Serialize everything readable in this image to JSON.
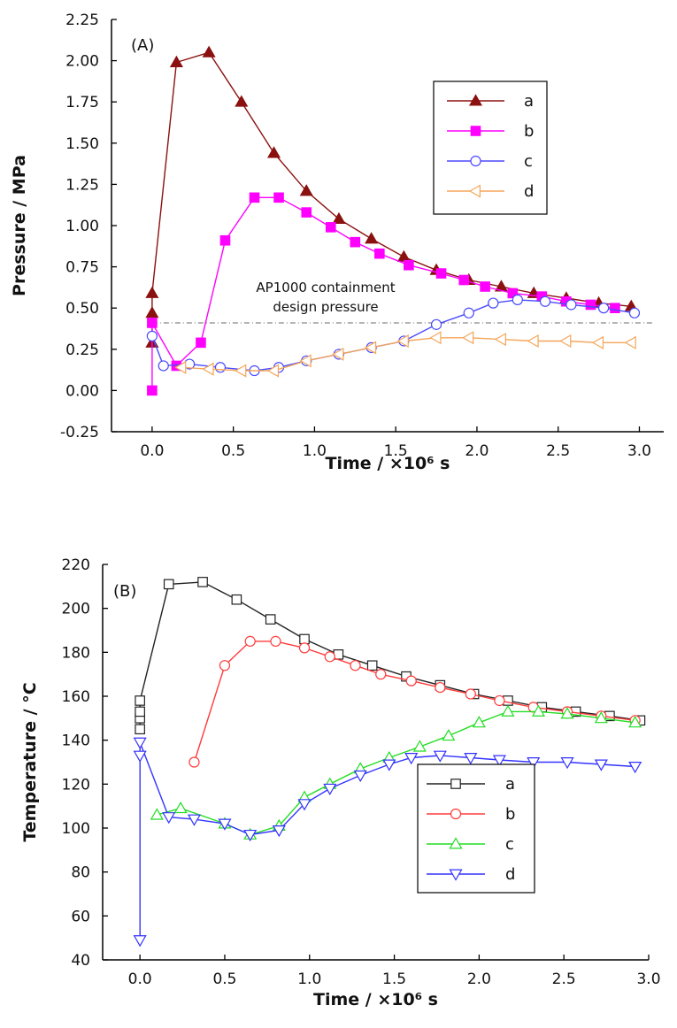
{
  "chart_data": [
    {
      "type": "line",
      "panel_label": "(A)",
      "xlabel": "Time / ×10⁶ s",
      "ylabel": "Pressure / MPa",
      "xlim": [
        -0.25,
        3.15
      ],
      "ylim": [
        -0.25,
        2.25
      ],
      "xticks": [
        0.0,
        0.5,
        1.0,
        1.5,
        2.0,
        2.5,
        3.0
      ],
      "xtick_labels": [
        "0.0",
        "0.5",
        "1.0",
        "1.5",
        "2.0",
        "2.5",
        "3.0"
      ],
      "yticks": [
        -0.25,
        0.0,
        0.25,
        0.5,
        0.75,
        1.0,
        1.25,
        1.5,
        1.75,
        2.0,
        2.25
      ],
      "ytick_labels": [
        "-0.25",
        "0.00",
        "0.25",
        "0.50",
        "0.75",
        "1.00",
        "1.25",
        "1.50",
        "1.75",
        "2.00",
        "2.25"
      ],
      "grid": false,
      "legend_position": "top-right",
      "annotation": {
        "lines": [
          "AP1000 containment",
          "design pressure"
        ],
        "reference_y": 0.41
      },
      "series": [
        {
          "name": "a",
          "color": "#8b1010",
          "marker": "triangle-up",
          "x": [
            0,
            0,
            0,
            0.15,
            0.35,
            0.55,
            0.75,
            0.95,
            1.15,
            1.35,
            1.55,
            1.75,
            1.95,
            2.15,
            2.35,
            2.55,
            2.75,
            2.95
          ],
          "y": [
            0.29,
            0.47,
            0.59,
            1.99,
            2.05,
            1.75,
            1.44,
            1.21,
            1.04,
            0.92,
            0.81,
            0.73,
            0.67,
            0.63,
            0.59,
            0.56,
            0.53,
            0.51
          ]
        },
        {
          "name": "b",
          "color": "#ff00ff",
          "marker": "square",
          "x": [
            0,
            0,
            0.15,
            0.3,
            0.45,
            0.63,
            0.78,
            0.95,
            1.1,
            1.25,
            1.4,
            1.58,
            1.78,
            1.92,
            2.05,
            2.22,
            2.4,
            2.55,
            2.7,
            2.85
          ],
          "y": [
            0.0,
            0.41,
            0.15,
            0.29,
            0.91,
            1.17,
            1.17,
            1.08,
            0.99,
            0.9,
            0.83,
            0.76,
            0.71,
            0.67,
            0.63,
            0.59,
            0.57,
            0.54,
            0.52,
            0.5
          ]
        },
        {
          "name": "c",
          "color": "#4a4aff",
          "marker": "circle",
          "x": [
            0,
            0.07,
            0.23,
            0.42,
            0.63,
            0.78,
            0.95,
            1.15,
            1.35,
            1.55,
            1.75,
            1.95,
            2.1,
            2.25,
            2.42,
            2.58,
            2.78,
            2.97
          ],
          "y": [
            0.33,
            0.15,
            0.16,
            0.14,
            0.12,
            0.14,
            0.18,
            0.22,
            0.26,
            0.3,
            0.4,
            0.47,
            0.53,
            0.55,
            0.54,
            0.52,
            0.5,
            0.47
          ]
        },
        {
          "name": "d",
          "color": "#f5a55a",
          "marker": "triangle-left",
          "x": [
            0.18,
            0.35,
            0.55,
            0.75,
            0.95,
            1.15,
            1.35,
            1.55,
            1.75,
            1.95,
            2.15,
            2.35,
            2.55,
            2.75,
            2.95
          ],
          "y": [
            0.14,
            0.13,
            0.12,
            0.12,
            0.18,
            0.22,
            0.26,
            0.3,
            0.32,
            0.32,
            0.31,
            0.3,
            0.3,
            0.29,
            0.29
          ]
        }
      ]
    },
    {
      "type": "line",
      "panel_label": "(B)",
      "xlabel": "Time / ×10⁶ s",
      "ylabel": "Temperature / °C",
      "xlim": [
        -0.22,
        3.0
      ],
      "ylim": [
        40,
        220
      ],
      "xticks": [
        0.0,
        0.5,
        1.0,
        1.5,
        2.0,
        2.5,
        3.0
      ],
      "xtick_labels": [
        "0.0",
        "0.5",
        "1.0",
        "1.5",
        "2.0",
        "2.5",
        "3.0"
      ],
      "yticks": [
        40,
        60,
        80,
        100,
        120,
        140,
        160,
        180,
        200,
        220
      ],
      "ytick_labels": [
        "40",
        "60",
        "80",
        "100",
        "120",
        "140",
        "160",
        "180",
        "200",
        "220"
      ],
      "grid": false,
      "legend_position": "bottom-right",
      "series": [
        {
          "name": "a",
          "color": "#222222",
          "marker": "square",
          "x": [
            0,
            0,
            0,
            0,
            0.17,
            0.37,
            0.57,
            0.77,
            0.97,
            1.17,
            1.37,
            1.57,
            1.77,
            1.97,
            2.17,
            2.37,
            2.57,
            2.77,
            2.95
          ],
          "y": [
            145,
            150,
            153,
            158,
            211,
            212,
            204,
            195,
            186,
            179,
            174,
            169,
            165,
            161,
            158,
            155,
            153,
            151,
            149
          ]
        },
        {
          "name": "b",
          "color": "#ff3b3b",
          "marker": "circle",
          "x": [
            0.32,
            0.5,
            0.65,
            0.8,
            0.97,
            1.12,
            1.27,
            1.42,
            1.6,
            1.77,
            1.95,
            2.12,
            2.32,
            2.52,
            2.72,
            2.92
          ],
          "y": [
            130,
            174,
            185,
            185,
            182,
            178,
            174,
            170,
            167,
            164,
            161,
            158,
            155,
            153,
            151,
            149
          ]
        },
        {
          "name": "c",
          "color": "#22dd22",
          "marker": "triangle-up",
          "x": [
            0.1,
            0.24,
            0.5,
            0.65,
            0.82,
            0.97,
            1.12,
            1.3,
            1.47,
            1.65,
            1.82,
            2.0,
            2.17,
            2.35,
            2.52,
            2.72,
            2.92
          ],
          "y": [
            106,
            109,
            102,
            97,
            101,
            114,
            120,
            127,
            132,
            137,
            142,
            148,
            153,
            153,
            152,
            150,
            148
          ]
        },
        {
          "name": "d",
          "color": "#3333ff",
          "marker": "triangle-down",
          "x": [
            0,
            0,
            0,
            0.17,
            0.32,
            0.5,
            0.65,
            0.82,
            0.97,
            1.12,
            1.3,
            1.47,
            1.6,
            1.77,
            1.95,
            2.12,
            2.32,
            2.52,
            2.72,
            2.92
          ],
          "y": [
            49,
            133,
            139,
            105,
            104,
            102,
            97,
            99,
            111,
            118,
            124,
            129,
            132,
            133,
            132,
            131,
            130,
            130,
            129,
            128
          ]
        }
      ]
    }
  ]
}
